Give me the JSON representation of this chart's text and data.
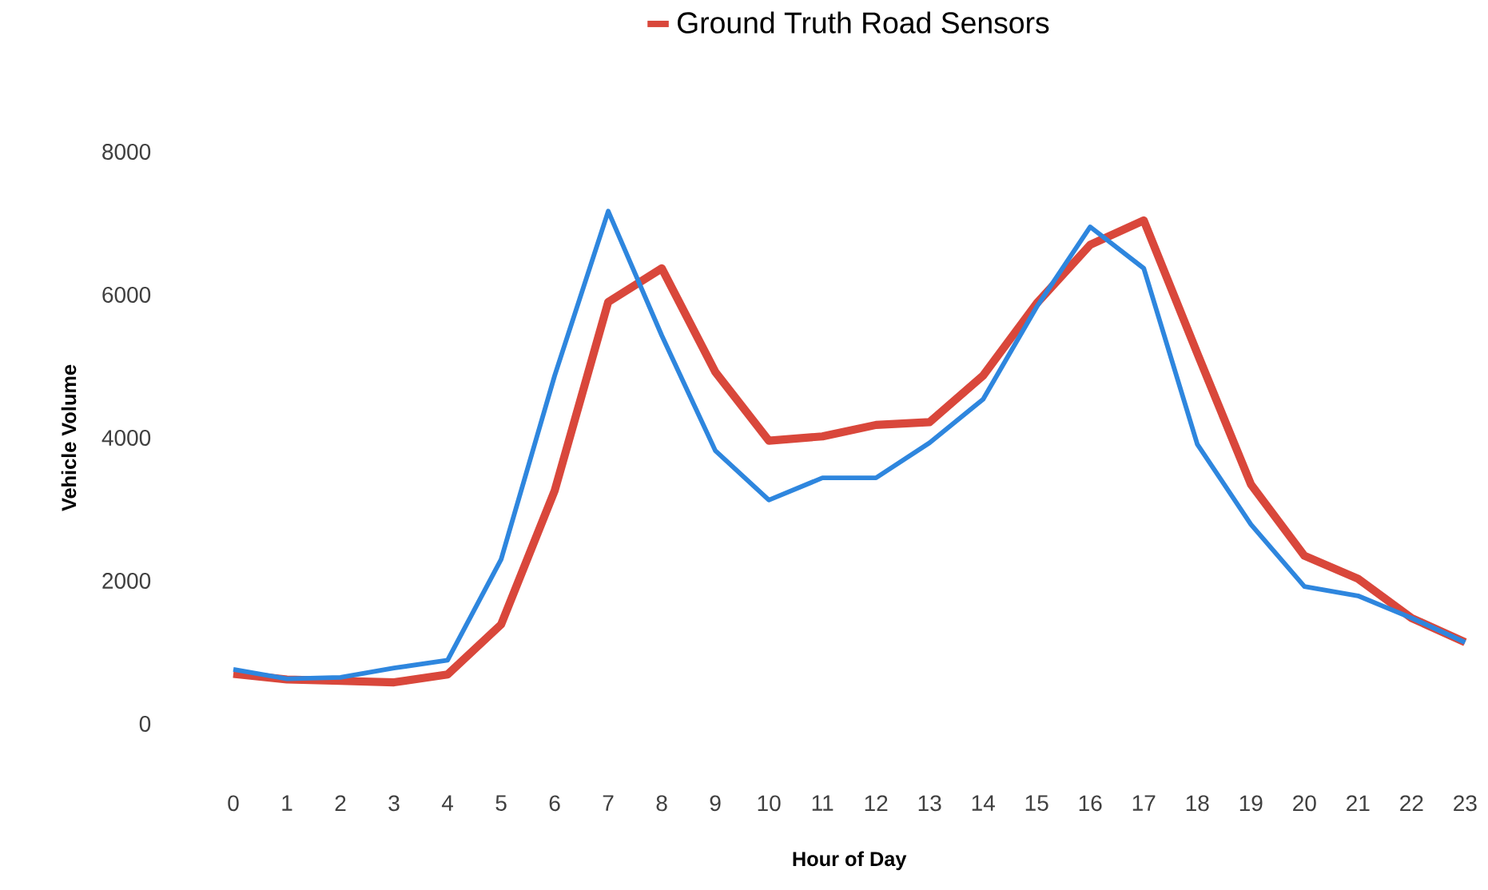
{
  "chart_data": {
    "type": "line",
    "xlabel": "Hour of Day",
    "ylabel": "Vehicle Volume",
    "categories": [
      "0",
      "1",
      "2",
      "3",
      "4",
      "5",
      "6",
      "7",
      "8",
      "9",
      "10",
      "11",
      "12",
      "13",
      "14",
      "15",
      "16",
      "17",
      "18",
      "19",
      "20",
      "21",
      "22",
      "23"
    ],
    "series": [
      {
        "name": "Ground Truth Road Sensors",
        "color": "#d9473b",
        "values": [
          700,
          620,
          600,
          580,
          690,
          1390,
          3260,
          5900,
          6370,
          4920,
          3960,
          4020,
          4180,
          4220,
          4870,
          5880,
          6700,
          7040,
          5180,
          3350,
          2350,
          2030,
          1480,
          1140
        ]
      },
      {
        "color": "#2e86de",
        "values": [
          760,
          630,
          650,
          780,
          890,
          2300,
          4870,
          7170,
          5430,
          3820,
          3130,
          3440,
          3440,
          3930,
          4540,
          5830,
          6950,
          6370,
          3910,
          2790,
          1920,
          1790,
          1480,
          1140
        ]
      }
    ],
    "ylim": [
      0,
      8000
    ],
    "yticks": [
      0,
      2000,
      4000,
      6000,
      8000
    ],
    "grid": false,
    "legend": "top"
  }
}
